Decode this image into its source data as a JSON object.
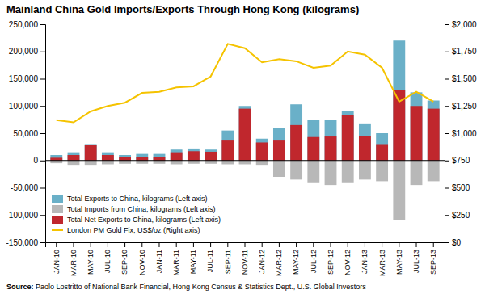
{
  "chart_data": {
    "type": "bar",
    "title": "Mainland China Gold Imports/Exports Through Hong Kong (kilograms)",
    "annotations": [
      "Source:",
      " Paolo Lostritto of National Bank Financial, Hong Kong Census & Statistics Dept., U.S. Global Investors"
    ],
    "categories": [
      "JAN-10",
      "MAR-10",
      "MAY-10",
      "JUL-10",
      "SEP-10",
      "NOV-10",
      "JAN-11",
      "MAR-11",
      "MAY-11",
      "JUL-11",
      "SEP-11",
      "NOV-11",
      "JAN-12",
      "MAR-12",
      "MAY-12",
      "JUL-12",
      "SEP-12",
      "NOV-12",
      "JAN-13",
      "MAR-13",
      "MAY-13",
      "JUL-13",
      "SEP-13"
    ],
    "series": [
      {
        "name": "Total Exports to China, kilograms (Left axis)",
        "type": "bar",
        "color": "#6ab0c8",
        "values": [
          10000,
          15000,
          30000,
          15000,
          10000,
          12000,
          12000,
          20000,
          22000,
          20000,
          55000,
          100000,
          40000,
          60000,
          103000,
          75000,
          75000,
          90000,
          68000,
          50000,
          220000,
          125000,
          110000
        ]
      },
      {
        "name": "Total Imports from China, kilograms (Left axis)",
        "type": "bar",
        "color": "#b8b8b8",
        "values": [
          -5000,
          -8000,
          -8000,
          -7000,
          -6000,
          -6000,
          -6000,
          -7000,
          -6000,
          -6000,
          -7000,
          -7000,
          -8000,
          -30000,
          -35000,
          -40000,
          -45000,
          -40000,
          -35000,
          -38000,
          -110000,
          -45000,
          -38000
        ]
      },
      {
        "name": "Total Net Exports to China, kilograms (Left axis)",
        "type": "bar",
        "color": "#c0272d",
        "values": [
          5000,
          10000,
          28000,
          10000,
          6000,
          7000,
          7000,
          15000,
          17000,
          16000,
          38000,
          95000,
          33000,
          38000,
          65000,
          43000,
          44000,
          83000,
          45000,
          30000,
          130000,
          100000,
          95000
        ]
      },
      {
        "name": "London PM Gold Fix, US$/oz (Right axis)",
        "type": "line",
        "axis": "y2",
        "color": "#f5c300",
        "values": [
          1120,
          1100,
          1200,
          1250,
          1280,
          1370,
          1380,
          1420,
          1430,
          1520,
          1820,
          1780,
          1650,
          1680,
          1660,
          1600,
          1620,
          1750,
          1720,
          1600,
          1290,
          1380,
          1290
        ]
      }
    ],
    "ylim": [
      -150000,
      250000
    ],
    "yticks": [
      {
        "value": -150000,
        "label": "-150,000"
      },
      {
        "value": -100000,
        "label": "-100,000"
      },
      {
        "value": -50000,
        "label": "-50,000"
      },
      0,
      {
        "value": 50000,
        "label": "50,000"
      },
      {
        "value": 100000,
        "label": "100,000"
      },
      {
        "value": 150000,
        "label": "150,000"
      },
      {
        "value": 200000,
        "label": "200,000"
      },
      {
        "value": 250000,
        "label": "250,000"
      }
    ],
    "y2lim": [
      0,
      2000
    ],
    "y2ticks": [
      {
        "value": 0,
        "label": "$0"
      },
      {
        "value": 250,
        "label": "$250"
      },
      {
        "value": 500,
        "label": "$500"
      },
      {
        "value": 750,
        "label": "$750"
      },
      {
        "value": 1000,
        "label": "$1,000"
      },
      {
        "value": 1250,
        "label": "$1,250"
      },
      {
        "value": 1500,
        "label": "$1,500"
      },
      {
        "value": 1750,
        "label": "$1,750"
      },
      {
        "value": 2000,
        "label": "$2,000"
      }
    ],
    "grid": false,
    "legend": "lower left"
  }
}
